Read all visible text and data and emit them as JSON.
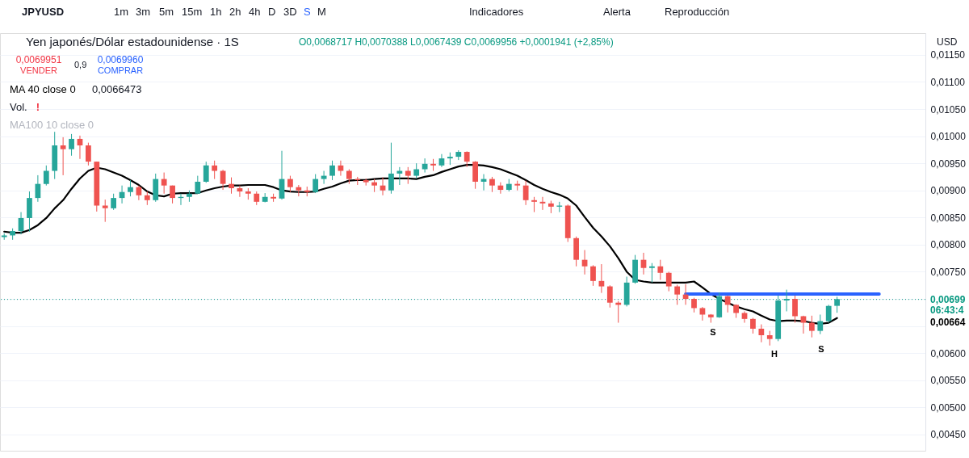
{
  "chart_data": {
    "type": "candlestick",
    "title": "Yen japonés/Dólar estadounidense · 1S",
    "subtitle": "O0,0068717 H0,0070388 L0,0067439 C0,0069956 +0,0001941 (+2,85%)",
    "categories": [
      null,
      null,
      null,
      null,
      null,
      null,
      null,
      null,
      null,
      null,
      null,
      null,
      null,
      null,
      null,
      null,
      null,
      null,
      null,
      null,
      null,
      null,
      null,
      null,
      null,
      null,
      null,
      null,
      null,
      null,
      null,
      null,
      null,
      null,
      null,
      null,
      null,
      null,
      null,
      null,
      null,
      null,
      null,
      null,
      null,
      null,
      null,
      null,
      null,
      null,
      null,
      null,
      null,
      null,
      null,
      null,
      null,
      null,
      null,
      null,
      null,
      null,
      null,
      null,
      null,
      null,
      null,
      null,
      null,
      null,
      null,
      null,
      null,
      null,
      null,
      null,
      null,
      null,
      null,
      null,
      null,
      null,
      null,
      null,
      null,
      null,
      null,
      null,
      null,
      null,
      null,
      null,
      null,
      null,
      null,
      null,
      null,
      null,
      null,
      null,
      null,
      null,
      null,
      null,
      null,
      null,
      null,
      null,
      null,
      null
    ],
    "ohlc": [
      [
        0.00814,
        0.00821,
        0.00809,
        0.00817
      ],
      [
        0.00817,
        0.0083,
        0.00809,
        0.00825
      ],
      [
        0.00825,
        0.0086,
        0.00819,
        0.00849
      ],
      [
        0.00849,
        0.00898,
        0.00824,
        0.00886
      ],
      [
        0.00886,
        0.00928,
        0.00879,
        0.00912
      ],
      [
        0.00912,
        0.00946,
        0.00909,
        0.00936
      ],
      [
        0.00936,
        0.01008,
        0.00921,
        0.00983
      ],
      [
        0.00983,
        0.00998,
        0.00928,
        0.00976
      ],
      [
        0.00976,
        0.01004,
        0.00964,
        0.00995
      ],
      [
        0.00995,
        0.01001,
        0.00958,
        0.00983
      ],
      [
        0.00983,
        0.00988,
        0.00946,
        0.00953
      ],
      [
        0.00953,
        0.00953,
        0.00861,
        0.00872
      ],
      [
        0.00872,
        0.00883,
        0.00842,
        0.00867
      ],
      [
        0.00867,
        0.00894,
        0.00864,
        0.00886
      ],
      [
        0.00886,
        0.00909,
        0.00876,
        0.00897
      ],
      [
        0.00897,
        0.00919,
        0.00889,
        0.00906
      ],
      [
        0.00906,
        0.00909,
        0.00882,
        0.00891
      ],
      [
        0.00891,
        0.00898,
        0.00873,
        0.00882
      ],
      [
        0.00882,
        0.00931,
        0.00879,
        0.00921
      ],
      [
        0.00921,
        0.00933,
        0.00894,
        0.00909
      ],
      [
        0.00909,
        0.00909,
        0.00876,
        0.00886
      ],
      [
        0.00886,
        0.00894,
        0.00873,
        0.00888
      ],
      [
        0.00888,
        0.009,
        0.00879,
        0.00894
      ],
      [
        0.00894,
        0.00927,
        0.00894,
        0.00916
      ],
      [
        0.00916,
        0.00953,
        0.00914,
        0.00946
      ],
      [
        0.00946,
        0.00955,
        0.00921,
        0.00936
      ],
      [
        0.00936,
        0.00938,
        0.00901,
        0.00912
      ],
      [
        0.00912,
        0.00924,
        0.00894,
        0.00904
      ],
      [
        0.00904,
        0.00909,
        0.00888,
        0.00898
      ],
      [
        0.00898,
        0.00904,
        0.00883,
        0.00894
      ],
      [
        0.00894,
        0.00898,
        0.00873,
        0.00879
      ],
      [
        0.00879,
        0.00895,
        0.00878,
        0.00888
      ],
      [
        0.00888,
        0.00894,
        0.00879,
        0.00885
      ],
      [
        0.00885,
        0.00973,
        0.00883,
        0.00921
      ],
      [
        0.00921,
        0.00927,
        0.00897,
        0.00906
      ],
      [
        0.00906,
        0.0091,
        0.00889,
        0.009
      ],
      [
        0.009,
        0.00907,
        0.00889,
        0.00897
      ],
      [
        0.00897,
        0.0093,
        0.00895,
        0.00921
      ],
      [
        0.00921,
        0.00936,
        0.00912,
        0.00927
      ],
      [
        0.00927,
        0.00955,
        0.00919,
        0.00946
      ],
      [
        0.00946,
        0.00955,
        0.00927,
        0.00936
      ],
      [
        0.00936,
        0.00939,
        0.00912,
        0.00921
      ],
      [
        0.00921,
        0.00925,
        0.0091,
        0.00919
      ],
      [
        0.00919,
        0.00922,
        0.00909,
        0.00915
      ],
      [
        0.00915,
        0.00921,
        0.00897,
        0.00909
      ],
      [
        0.00909,
        0.00924,
        0.00891,
        0.009
      ],
      [
        0.009,
        0.00988,
        0.00894,
        0.00931
      ],
      [
        0.00931,
        0.00943,
        0.0091,
        0.00936
      ],
      [
        0.00936,
        0.00943,
        0.00912,
        0.00927
      ],
      [
        0.00927,
        0.0095,
        0.00922,
        0.00939
      ],
      [
        0.00939,
        0.00959,
        0.00933,
        0.00949
      ],
      [
        0.00949,
        0.00958,
        0.00936,
        0.00946
      ],
      [
        0.00946,
        0.00967,
        0.00943,
        0.00959
      ],
      [
        0.00959,
        0.0097,
        0.00947,
        0.00962
      ],
      [
        0.00962,
        0.00974,
        0.00956,
        0.00971
      ],
      [
        0.00971,
        0.00972,
        0.00943,
        0.00953
      ],
      [
        0.00953,
        0.00954,
        0.00903,
        0.00916
      ],
      [
        0.00916,
        0.0093,
        0.009,
        0.00921
      ],
      [
        0.00921,
        0.00925,
        0.00897,
        0.00909
      ],
      [
        0.00909,
        0.00915,
        0.00894,
        0.00901
      ],
      [
        0.00901,
        0.00921,
        0.00898,
        0.00912
      ],
      [
        0.00912,
        0.00918,
        0.009,
        0.00909
      ],
      [
        0.00909,
        0.00918,
        0.00873,
        0.00882
      ],
      [
        0.00882,
        0.00888,
        0.0086,
        0.00879
      ],
      [
        0.00879,
        0.00888,
        0.00864,
        0.00876
      ],
      [
        0.00876,
        0.00881,
        0.00858,
        0.0087
      ],
      [
        0.0087,
        0.00879,
        0.0086,
        0.00872
      ],
      [
        0.00872,
        0.00874,
        0.00805,
        0.00812
      ],
      [
        0.00812,
        0.00815,
        0.0076,
        0.00772
      ],
      [
        0.00772,
        0.0079,
        0.00745,
        0.0076
      ],
      [
        0.0076,
        0.00762,
        0.00724,
        0.00733
      ],
      [
        0.00733,
        0.00764,
        0.00711,
        0.00723
      ],
      [
        0.00723,
        0.00725,
        0.00684,
        0.00693
      ],
      [
        0.00693,
        0.00696,
        0.00656,
        0.00689
      ],
      [
        0.00689,
        0.00741,
        0.00686,
        0.0073
      ],
      [
        0.0073,
        0.00781,
        0.00728,
        0.00772
      ],
      [
        0.00772,
        0.00785,
        0.00745,
        0.00757
      ],
      [
        0.00757,
        0.00766,
        0.0073,
        0.0076
      ],
      [
        0.0076,
        0.00772,
        0.00735,
        0.00748
      ],
      [
        0.00748,
        0.0075,
        0.00714,
        0.00723
      ],
      [
        0.00723,
        0.00726,
        0.00689,
        0.00708
      ],
      [
        0.00708,
        0.00727,
        0.00689,
        0.007
      ],
      [
        0.007,
        0.00702,
        0.00675,
        0.00683
      ],
      [
        0.00683,
        0.00685,
        0.0066,
        0.00671
      ],
      [
        0.00671,
        0.00672,
        0.00656,
        0.00666
      ],
      [
        0.00666,
        0.00712,
        0.00665,
        0.00705
      ],
      [
        0.00705,
        0.00706,
        0.00675,
        0.00689
      ],
      [
        0.00689,
        0.0069,
        0.00665,
        0.00674
      ],
      [
        0.00674,
        0.00677,
        0.00656,
        0.00663
      ],
      [
        0.00663,
        0.00665,
        0.00636,
        0.00645
      ],
      [
        0.00645,
        0.00653,
        0.0062,
        0.00633
      ],
      [
        0.00633,
        0.00641,
        0.00614,
        0.00626
      ],
      [
        0.00626,
        0.00706,
        0.00622,
        0.00697
      ],
      [
        0.00697,
        0.00717,
        0.00677,
        0.007
      ],
      [
        0.007,
        0.00706,
        0.00656,
        0.00668
      ],
      [
        0.00668,
        0.00669,
        0.00636,
        0.00656
      ],
      [
        0.00656,
        0.00669,
        0.00629,
        0.00641
      ],
      [
        0.00641,
        0.00671,
        0.00635,
        0.00659
      ],
      [
        0.00659,
        0.00689,
        0.00656,
        0.00687
      ],
      [
        0.0068717,
        0.0070388,
        0.0067439,
        0.0069956
      ],
      null,
      null,
      null,
      null,
      null,
      null,
      null,
      null,
      null,
      null
    ],
    "colors": [
      "#26a69a",
      "#26a69a",
      "#26a69a",
      "#26a69a",
      "#26a69a",
      "#26a69a",
      "#26a69a",
      "#ef5350",
      "#26a69a",
      "#ef5350",
      "#ef5350",
      "#ef5350",
      "#ef5350",
      "#26a69a",
      "#26a69a",
      "#26a69a",
      "#ef5350",
      "#ef5350",
      "#26a69a",
      "#ef5350",
      "#ef5350",
      "#26a69a",
      "#26a69a",
      "#26a69a",
      "#26a69a",
      "#ef5350",
      "#ef5350",
      "#ef5350",
      "#ef5350",
      "#ef5350",
      "#ef5350",
      "#26a69a",
      "#ef5350",
      "#26a69a",
      "#ef5350",
      "#ef5350",
      "#ef5350",
      "#26a69a",
      "#26a69a",
      "#26a69a",
      "#ef5350",
      "#ef5350",
      "#ef5350",
      "#ef5350",
      "#ef5350",
      "#ef5350",
      "#26a69a",
      "#26a69a",
      "#ef5350",
      "#26a69a",
      "#26a69a",
      "#ef5350",
      "#26a69a",
      "#26a69a",
      "#26a69a",
      "#ef5350",
      "#ef5350",
      "#26a69a",
      "#ef5350",
      "#ef5350",
      "#26a69a",
      "#ef5350",
      "#ef5350",
      "#ef5350",
      "#ef5350",
      "#ef5350",
      "#26a69a",
      "#ef5350",
      "#ef5350",
      "#ef5350",
      "#ef5350",
      "#ef5350",
      "#ef5350",
      "#ef5350",
      "#26a69a",
      "#26a69a",
      "#ef5350",
      "#26a69a",
      "#ef5350",
      "#ef5350",
      "#ef5350",
      "#ef5350",
      "#ef5350",
      "#ef5350",
      "#ef5350",
      "#26a69a",
      "#ef5350",
      "#ef5350",
      "#ef5350",
      "#ef5350",
      "#ef5350",
      "#ef5350",
      "#26a69a",
      "#26a69a",
      "#ef5350",
      "#ef5350",
      "#ef5350",
      "#26a69a",
      "#26a69a",
      "#26a69a",
      null,
      null,
      null,
      null,
      null,
      null,
      null,
      null,
      null,
      null
    ],
    "series": [
      {
        "type": "line",
        "name": "MA 40 close 0",
        "color": "#000000",
        "values": [
          0.00824,
          0.00822,
          0.00822,
          0.00827,
          0.00836,
          0.00849,
          0.00867,
          0.00882,
          0.00903,
          0.00922,
          0.00936,
          0.00942,
          0.00939,
          0.00933,
          0.00927,
          0.00919,
          0.0091,
          0.00898,
          0.00891,
          0.00889,
          0.00894,
          0.00895,
          0.00895,
          0.00895,
          0.009,
          0.00904,
          0.00907,
          0.00909,
          0.00909,
          0.0091,
          0.0091,
          0.0091,
          0.00906,
          0.009,
          0.00898,
          0.00897,
          0.00897,
          0.00898,
          0.00903,
          0.00907,
          0.00913,
          0.00918,
          0.00919,
          0.00919,
          0.00921,
          0.00922,
          0.00922,
          0.00922,
          0.00922,
          0.00921,
          0.00925,
          0.00928,
          0.00934,
          0.00939,
          0.00944,
          0.00947,
          0.00947,
          0.00946,
          0.00943,
          0.00939,
          0.00933,
          0.00927,
          0.00919,
          0.0091,
          0.00903,
          0.00897,
          0.00892,
          0.00885,
          0.00872,
          0.00851,
          0.00831,
          0.00815,
          0.00797,
          0.00775,
          0.0075,
          0.00735,
          0.00732,
          0.0073,
          0.0073,
          0.0073,
          0.0073,
          0.0073,
          0.00732,
          0.00721,
          0.00709,
          0.007,
          0.00693,
          0.00686,
          0.00681,
          0.00677,
          0.00669,
          0.00662,
          0.00659,
          0.0066,
          0.0066,
          0.00659,
          0.00656,
          0.00654,
          0.00656,
          0.0066473,
          null,
          null,
          null,
          null,
          null,
          null,
          null,
          null,
          null,
          null
        ]
      },
      {
        "type": "line",
        "color": "#2962ff",
        "values": [
          null,
          null,
          null,
          null,
          null,
          null,
          null,
          null,
          null,
          null,
          null,
          null,
          null,
          null,
          null,
          null,
          null,
          null,
          null,
          null,
          null,
          null,
          null,
          null,
          null,
          null,
          null,
          null,
          null,
          null,
          null,
          null,
          null,
          null,
          null,
          null,
          null,
          null,
          null,
          null,
          null,
          null,
          null,
          null,
          null,
          null,
          null,
          null,
          null,
          null,
          null,
          null,
          null,
          null,
          null,
          null,
          null,
          null,
          null,
          null,
          null,
          null,
          null,
          null,
          null,
          null,
          null,
          null,
          null,
          null,
          null,
          null,
          null,
          null,
          null,
          null,
          null,
          null,
          null,
          null,
          null,
          0.00709,
          0.00709,
          0.00709,
          0.00709,
          0.00709,
          0.00709,
          0.00709,
          0.00709,
          0.00709,
          0.00709,
          0.00709,
          0.00709,
          0.00709,
          0.00709,
          0.00709,
          0.00709,
          0.00709,
          0.00709,
          0.00709,
          0.00709,
          0.00709,
          0.00709,
          0.00709,
          0.00709,
          null,
          null,
          null,
          null,
          null
        ]
      }
    ],
    "ylim": [
      0.0042,
      0.0119
    ],
    "yticks": [
      {
        "value": 0.0045,
        "label": "0,00450"
      },
      {
        "value": 0.005,
        "label": "0,00500"
      },
      {
        "value": 0.0055,
        "label": "0,00550"
      },
      {
        "value": 0.006,
        "label": "0,00600"
      },
      {
        "value": 0.0065,
        "label": null
      },
      {
        "value": 0.007,
        "label": null
      },
      {
        "value": 0.0075,
        "label": "0,00750"
      },
      {
        "value": 0.008,
        "label": "0,00800"
      },
      {
        "value": 0.0085,
        "label": "0,00850"
      },
      {
        "value": 0.009,
        "label": "0,00900"
      },
      {
        "value": 0.0095,
        "label": "0,00950"
      },
      {
        "value": 0.01,
        "label": "0,01000"
      },
      {
        "value": 0.0105,
        "label": "0,01050"
      },
      {
        "value": 0.011,
        "label": "0,01100"
      },
      {
        "value": 0.0115,
        "label": "0,01150"
      }
    ],
    "grid": "y",
    "legend": "top left",
    "tick_labels": "y",
    "ref_lines": [
      {
        "axis": "y",
        "value": 0.00699,
        "label": "0,00699",
        "color": "#089981",
        "line_style": "dotted"
      }
    ],
    "annotations": [
      "JPYUSD",
      "1m",
      "3m",
      "5m",
      "15m",
      "1h",
      "2h",
      "4h",
      "D",
      "3D",
      "S",
      "M",
      "Indicadores",
      "Alerta",
      "Reproducción",
      "0,0069951",
      "VENDER",
      "0,9",
      "0,0069960",
      "COMPRAR",
      "0,0066473",
      "Vol.",
      "!",
      "MA100 10 close 0",
      "USD",
      "06:43:4",
      "0,00664",
      "S",
      "H",
      "S"
    ]
  }
}
